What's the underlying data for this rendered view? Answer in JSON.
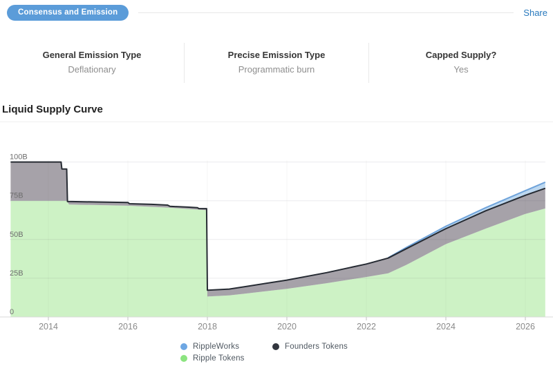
{
  "header": {
    "badge_label": "Consensus and Emission",
    "share_label": "Share"
  },
  "info": {
    "columns": [
      {
        "label": "General Emission Type",
        "value": "Deflationary"
      },
      {
        "label": "Precise Emission Type",
        "value": "Programmatic burn"
      },
      {
        "label": "Capped Supply?",
        "value": "Yes"
      }
    ]
  },
  "section_title": "Liquid Supply Curve",
  "chart_data": {
    "type": "area",
    "title": "Liquid Supply Curve",
    "xlabel": "",
    "ylabel": "",
    "unit": "B (billions of tokens)",
    "xlim": [
      2013.05,
      2026.5
    ],
    "ylim": [
      0,
      105
    ],
    "grid": true,
    "x_ticks": [
      2014,
      2016,
      2018,
      2020,
      2022,
      2024,
      2026
    ],
    "y_ticks": [
      {
        "label": "100B",
        "value": 100
      },
      {
        "label": "75B",
        "value": 75
      },
      {
        "label": "50B",
        "value": 50
      },
      {
        "label": "25B",
        "value": 25
      },
      {
        "label": "0",
        "value": 0
      }
    ],
    "legend_position": "bottom",
    "legend": [
      {
        "name": "RippleWorks",
        "color": "#6ea7e3"
      },
      {
        "name": "Founders Tokens",
        "color": "#32363e"
      },
      {
        "name": "Ripple Tokens",
        "color": "#8ce480"
      }
    ],
    "colors": {
      "green_fill": "#cdf2c5",
      "gray_fill": "#a6a2a9",
      "blue_fill": "#bdd8f0",
      "blue_stroke": "#6fa3da",
      "total_line": "#262b33",
      "grid_line": "rgba(70,70,80,0.10)",
      "axis_line": "#d9d9d9"
    },
    "series": [
      {
        "name": "Total supply (Founders Tokens top line)",
        "points": [
          [
            2013.05,
            100
          ],
          [
            2014.32,
            100
          ],
          [
            2014.34,
            95.5
          ],
          [
            2014.46,
            95.5
          ],
          [
            2014.48,
            74.5
          ],
          [
            2015.2,
            74.2
          ],
          [
            2016.0,
            73.9
          ],
          [
            2016.04,
            73.1
          ],
          [
            2016.6,
            72.7
          ],
          [
            2017.0,
            72.2
          ],
          [
            2017.06,
            71.4
          ],
          [
            2017.5,
            70.9
          ],
          [
            2017.75,
            70.5
          ],
          [
            2017.79,
            69.9
          ],
          [
            2017.98,
            69.9
          ],
          [
            2018.0,
            17.3
          ],
          [
            2018.55,
            18.0
          ],
          [
            2019.0,
            19.8
          ],
          [
            2020.0,
            23.8
          ],
          [
            2021.0,
            28.6
          ],
          [
            2022.0,
            34.2
          ],
          [
            2022.55,
            38.0
          ],
          [
            2023.0,
            44.0
          ],
          [
            2024.0,
            57.0
          ],
          [
            2025.0,
            68.5
          ],
          [
            2026.0,
            78.5
          ],
          [
            2026.5,
            83.0
          ]
        ]
      },
      {
        "name": "Ripple Tokens",
        "points": [
          [
            2013.05,
            75
          ],
          [
            2014.46,
            75
          ],
          [
            2014.52,
            72.6
          ],
          [
            2016.0,
            71.8
          ],
          [
            2017.0,
            70.6
          ],
          [
            2017.98,
            68.9
          ],
          [
            2018.0,
            13.2
          ],
          [
            2018.55,
            13.9
          ],
          [
            2019.0,
            15.2
          ],
          [
            2020.0,
            18.2
          ],
          [
            2021.0,
            21.8
          ],
          [
            2022.0,
            25.8
          ],
          [
            2022.55,
            28.2
          ],
          [
            2023.0,
            33.5
          ],
          [
            2024.0,
            47.0
          ],
          [
            2025.0,
            57.0
          ],
          [
            2026.0,
            66.5
          ],
          [
            2026.5,
            70.0
          ]
        ]
      },
      {
        "name": "RippleWorks (top of blue band)",
        "points": [
          [
            2022.55,
            38.2
          ],
          [
            2023.0,
            44.8
          ],
          [
            2024.0,
            58.5
          ],
          [
            2025.0,
            70.5
          ],
          [
            2026.0,
            81.5
          ],
          [
            2026.5,
            87.0
          ]
        ]
      }
    ]
  }
}
